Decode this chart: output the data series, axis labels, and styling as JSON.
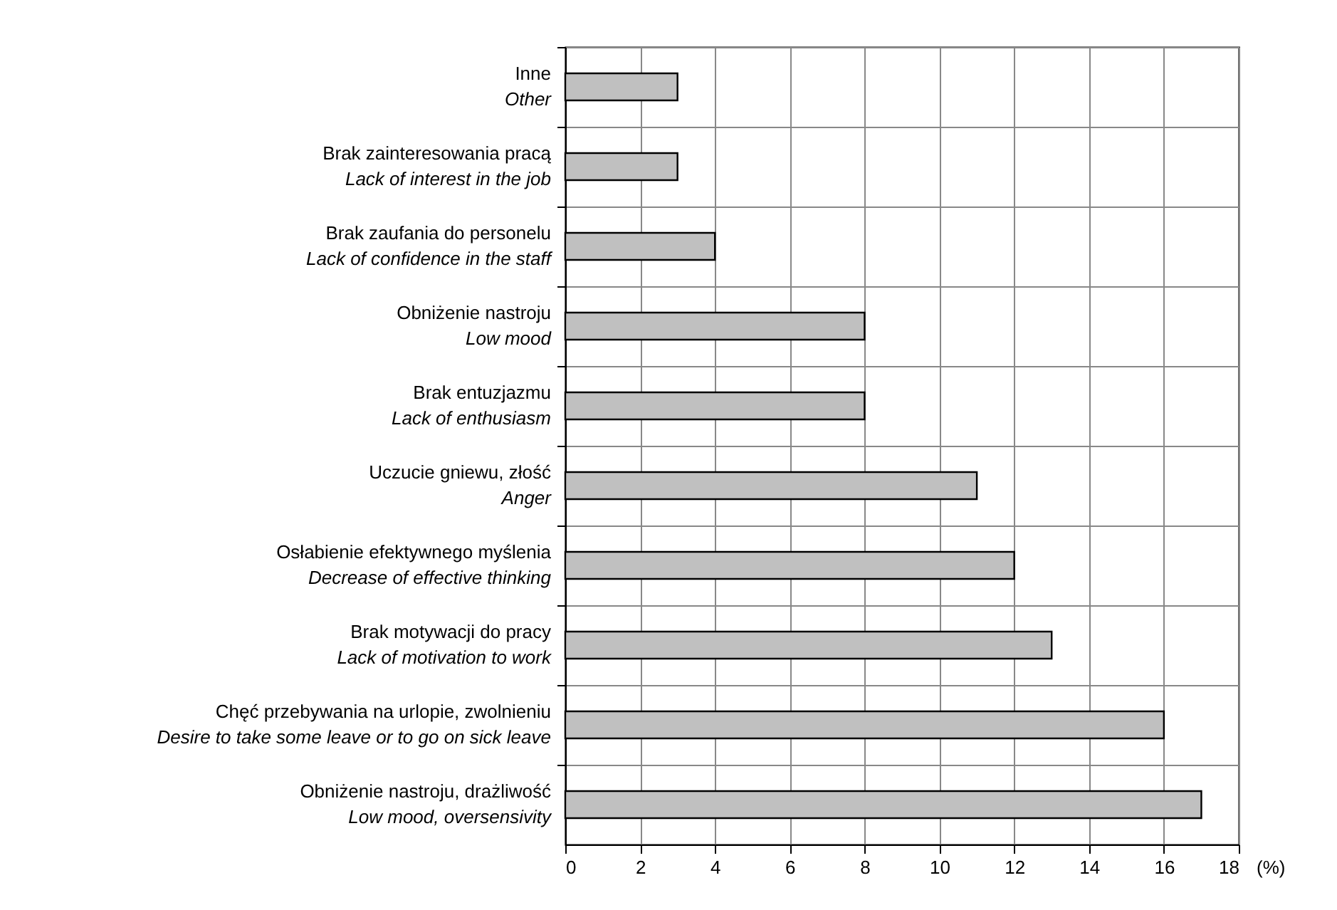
{
  "chart_data": {
    "type": "bar",
    "orientation": "horizontal",
    "xlabel": "(%)",
    "categories": [
      "Inne\nOther",
      "Brak zainteresowania pracą\nLack of interest in the job",
      "Brak zaufania do personelu\nLack of confidence in the staff",
      "Obniżenie nastroju\nLow mood",
      "Brak entuzjazmu\nLack of enthusiasm",
      "Uczucie gniewu, złość\nAnger",
      "Osłabienie efektywnego myślenia\nDecrease of  effective thinking",
      "Brak motywacji do pracy\nLack of motivation to work",
      "Chęć przebywania na urlopie, zwolnieniu\nDesire to take some leave or to go on sick leave",
      "Obniżenie nastroju, drażliwość\nLow mood, oversensivity"
    ],
    "values": [
      3,
      3,
      4,
      8,
      8,
      11,
      12,
      13,
      16,
      17
    ],
    "color": "#c0c0c0",
    "xlim": [
      0,
      18
    ],
    "xticks": [
      0,
      2,
      4,
      6,
      8,
      10,
      12,
      14,
      16,
      18
    ],
    "grid": true
  }
}
